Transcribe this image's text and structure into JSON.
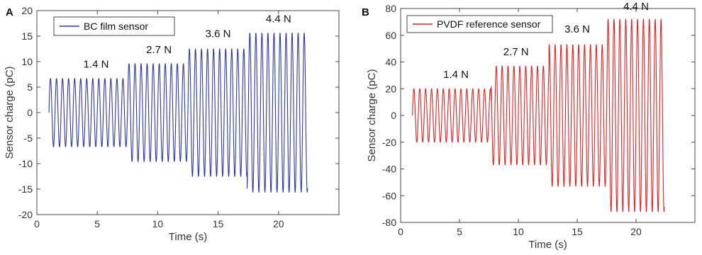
{
  "chart_data": [
    {
      "panel_label": "A",
      "type": "line",
      "xlabel": "Time (s)",
      "ylabel": "Sensor charge (pC)",
      "xlim": [
        0,
        25
      ],
      "ylim": [
        -20,
        20
      ],
      "xticks": [
        0,
        5,
        10,
        15,
        20
      ],
      "yticks": [
        -20,
        -15,
        -10,
        -5,
        0,
        5,
        10,
        15,
        20
      ],
      "grid": false,
      "legend_position": "top-left",
      "series": [
        {
          "name": "BC film sensor",
          "color": "#2b3a9e",
          "t_start": 1.0,
          "t_end": 22.4,
          "segments": [
            {
              "t_start": 1.0,
              "t_end": 7.5,
              "amplitude": 6.7,
              "cycles_per_s": 2.0
            },
            {
              "t_start": 7.5,
              "t_end": 12.5,
              "amplitude": 9.6,
              "cycles_per_s": 2.0
            },
            {
              "t_start": 12.5,
              "t_end": 17.4,
              "amplitude": 12.5,
              "cycles_per_s": 2.0
            },
            {
              "t_start": 17.4,
              "t_end": 22.4,
              "amplitude": 15.6,
              "cycles_per_s": 2.0
            }
          ]
        }
      ],
      "annotations": [
        {
          "text": "1.4 N",
          "x": 4.9,
          "y": 8.8
        },
        {
          "text": "2.7 N",
          "x": 10.1,
          "y": 11.7
        },
        {
          "text": "3.6 N",
          "x": 15.0,
          "y": 14.8
        },
        {
          "text": "4.4 N",
          "x": 20.0,
          "y": 17.7
        }
      ]
    },
    {
      "panel_label": "B",
      "type": "line",
      "xlabel": "Time (s)",
      "ylabel": "Sensor charge (pC)",
      "xlim": [
        0,
        25
      ],
      "ylim": [
        -80,
        80
      ],
      "xticks": [
        0,
        5,
        10,
        15,
        20
      ],
      "yticks": [
        -80,
        -60,
        -40,
        -20,
        0,
        20,
        40,
        60,
        80
      ],
      "grid": false,
      "legend_position": "top-left",
      "series": [
        {
          "name": "PVDF reference sensor",
          "color": "#e02323",
          "t_start": 1.0,
          "t_end": 22.4,
          "segments": [
            {
              "t_start": 1.0,
              "t_end": 7.7,
              "amplitude": 20,
              "cycles_per_s": 2.0
            },
            {
              "t_start": 7.7,
              "t_end": 12.6,
              "amplitude": 37,
              "cycles_per_s": 2.0
            },
            {
              "t_start": 12.6,
              "t_end": 17.5,
              "amplitude": 53,
              "cycles_per_s": 2.0
            },
            {
              "t_start": 17.5,
              "t_end": 22.4,
              "amplitude": 72,
              "cycles_per_s": 2.0
            }
          ]
        }
      ],
      "annotations": [
        {
          "text": "1.4 N",
          "x": 4.7,
          "y": 28
        },
        {
          "text": "2.7 N",
          "x": 9.8,
          "y": 45
        },
        {
          "text": "3.6 N",
          "x": 15.0,
          "y": 62
        },
        {
          "text": "4.4 N",
          "x": 20.0,
          "y": 79
        }
      ]
    }
  ]
}
